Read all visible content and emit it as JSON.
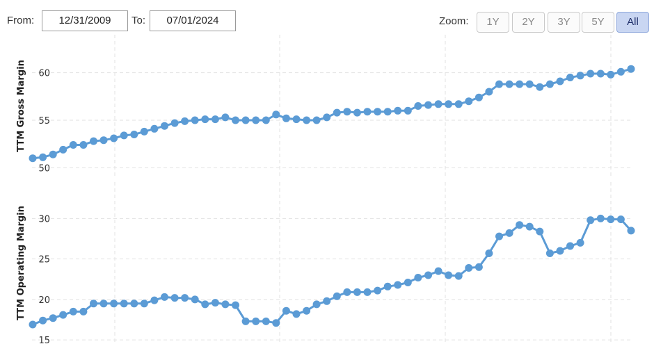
{
  "toolbar": {
    "from_label": "From:",
    "from_value": "12/31/2009",
    "to_label": "To:",
    "to_value": "07/01/2024",
    "zoom_label": "Zoom:",
    "zoom_buttons": [
      "1Y",
      "2Y",
      "3Y",
      "5Y",
      "All"
    ],
    "active_zoom": "All"
  },
  "chart_data": [
    {
      "type": "line",
      "ylabel": "TTM Gross Margin",
      "ylim": [
        49,
        64
      ],
      "yticks": [
        50,
        55,
        60
      ],
      "grid": true,
      "color": "#5b9bd5",
      "values": [
        51.0,
        51.1,
        51.4,
        51.9,
        52.4,
        52.4,
        52.8,
        52.9,
        53.1,
        53.4,
        53.5,
        53.8,
        54.1,
        54.4,
        54.7,
        54.9,
        55.0,
        55.1,
        55.1,
        55.3,
        55.0,
        55.0,
        55.0,
        55.0,
        55.6,
        55.2,
        55.1,
        55.0,
        55.0,
        55.3,
        55.8,
        55.9,
        55.8,
        55.9,
        55.9,
        55.9,
        56.0,
        56.0,
        56.5,
        56.6,
        56.7,
        56.7,
        56.7,
        57.0,
        57.4,
        58.0,
        58.8,
        58.8,
        58.8,
        58.8,
        58.5,
        58.8,
        59.1,
        59.5,
        59.7,
        59.9,
        59.9,
        59.8,
        60.1,
        60.4
      ]
    },
    {
      "type": "line",
      "ylabel": "TTM Operating Margin",
      "ylim": [
        14.5,
        34.5
      ],
      "yticks": [
        15,
        20,
        25,
        30
      ],
      "grid": true,
      "color": "#5b9bd5",
      "values": [
        16.9,
        17.4,
        17.7,
        18.1,
        18.5,
        18.5,
        19.5,
        19.5,
        19.5,
        19.5,
        19.5,
        19.5,
        19.9,
        20.3,
        20.2,
        20.2,
        20.0,
        19.4,
        19.6,
        19.4,
        19.3,
        17.3,
        17.3,
        17.3,
        17.1,
        18.6,
        18.2,
        18.6,
        19.4,
        19.8,
        20.4,
        20.9,
        20.9,
        20.9,
        21.1,
        21.6,
        21.8,
        22.1,
        22.7,
        23.0,
        23.5,
        23.0,
        22.9,
        23.9,
        24.0,
        25.7,
        27.8,
        28.2,
        29.2,
        29.0,
        28.4,
        25.7,
        26.0,
        26.6,
        27.0,
        29.8,
        30.0,
        29.9,
        29.9,
        28.5
      ]
    }
  ]
}
